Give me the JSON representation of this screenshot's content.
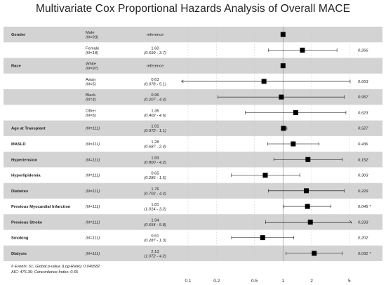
{
  "chart_data": {
    "type": "forest",
    "title": "Multivariate Cox Proportional Hazards Analysis of Overall MACE",
    "x_scale": "log",
    "x_ticks": [
      0.1,
      0.2,
      0.5,
      1,
      2,
      5
    ],
    "x_tick_labels": [
      "0.1",
      "0.2",
      "0.5",
      "1",
      "2",
      "5"
    ],
    "xlim": [
      0.1,
      5
    ],
    "rows": [
      {
        "variable": "Gender",
        "level": "Male",
        "n": "(N=93)",
        "hr_text": "reference",
        "ci_text": "",
        "p_text": "",
        "hr": 1,
        "lo": null,
        "hi": null,
        "shaded": true
      },
      {
        "variable": "",
        "level": "Female",
        "n": "(N=18)",
        "hr_text": "1.60",
        "ci_text": "(0.699 - 3.7)",
        "p_text": "0.266",
        "hr": 1.6,
        "lo": 0.699,
        "hi": 3.7,
        "shaded": false
      },
      {
        "variable": "Race",
        "level": "White",
        "n": "(N=97)",
        "hr_text": "reference",
        "ci_text": "",
        "p_text": "",
        "hr": 1,
        "lo": null,
        "hi": null,
        "shaded": true
      },
      {
        "variable": "",
        "level": "Asian",
        "n": "(N=5)",
        "hr_text": "0.63",
        "ci_text": "(0.078 - 5.1)",
        "p_text": "0.663",
        "hr": 0.63,
        "lo": 0.078,
        "hi": 5.1,
        "shaded": false
      },
      {
        "variable": "",
        "level": "Black",
        "n": "(N=4)",
        "hr_text": "0.96",
        "ci_text": "(0.207 - 4.4)",
        "p_text": "0.957",
        "hr": 0.96,
        "lo": 0.207,
        "hi": 4.4,
        "shaded": true
      },
      {
        "variable": "",
        "level": "Other",
        "n": "(N=5)",
        "hr_text": "1.36",
        "ci_text": "(0.402 - 4.6)",
        "p_text": "0.623",
        "hr": 1.36,
        "lo": 0.402,
        "hi": 4.6,
        "shaded": false
      },
      {
        "variable": "Age at Transplant",
        "level": "",
        "n": "(N=111)",
        "hr_text": "1.01",
        "ci_text": "(0.972 - 1.1)",
        "p_text": "0.527",
        "hr": 1.01,
        "lo": 0.972,
        "hi": 1.1,
        "shaded": true
      },
      {
        "variable": "MASLD",
        "level": "",
        "n": "(N=111)",
        "hr_text": "1.28",
        "ci_text": "(0.687 - 2.4)",
        "p_text": "0.436",
        "hr": 1.28,
        "lo": 0.687,
        "hi": 2.4,
        "shaded": false
      },
      {
        "variable": "Hypertension",
        "level": "",
        "n": "(N=111)",
        "hr_text": "1.83",
        "ci_text": "(0.800 - 4.2)",
        "p_text": "0.152",
        "hr": 1.83,
        "lo": 0.8,
        "hi": 4.2,
        "shaded": true
      },
      {
        "variable": "Hyperlipidemia",
        "level": "",
        "n": "(N=111)",
        "hr_text": "0.65",
        "ci_text": "(0.286 - 1.5)",
        "p_text": "0.303",
        "hr": 0.65,
        "lo": 0.286,
        "hi": 1.5,
        "shaded": false
      },
      {
        "variable": "Diabetes",
        "level": "",
        "n": "(N=111)",
        "hr_text": "1.76",
        "ci_text": "(0.702 - 4.4)",
        "p_text": "0.229",
        "hr": 1.76,
        "lo": 0.702,
        "hi": 4.4,
        "shaded": true
      },
      {
        "variable": "Previous Myocardial Infarction",
        "level": "",
        "n": "(N=111)",
        "hr_text": "1.81",
        "ci_text": "(1.014 - 3.2)",
        "p_text": "0.045 *",
        "hr": 1.81,
        "lo": 1.014,
        "hi": 3.2,
        "shaded": false
      },
      {
        "variable": "Previous Stroke",
        "level": "",
        "n": "(N=111)",
        "hr_text": "1.94",
        "ci_text": "(0.654 - 5.8)",
        "p_text": "0.233",
        "hr": 1.94,
        "lo": 0.654,
        "hi": 5.8,
        "shaded": true
      },
      {
        "variable": "Smoking",
        "level": "",
        "n": "(N=111)",
        "hr_text": "0.61",
        "ci_text": "(0.287 - 1.3)",
        "p_text": "0.202",
        "hr": 0.61,
        "lo": 0.287,
        "hi": 1.3,
        "shaded": false
      },
      {
        "variable": "Dialysis",
        "level": "",
        "n": "(N=111)",
        "hr_text": "2.13",
        "ci_text": "(1.072 - 4.2)",
        "p_text": "0.031 *",
        "hr": 2.13,
        "lo": 1.072,
        "hi": 4.2,
        "shaded": true
      }
    ],
    "footnote_line1": "# Events: 61; Global p-value (Log-Rank): 0.049582",
    "footnote_line2": "AIC: 475.36; Concordance Index: 0.65",
    "colors": {
      "shade": "#d3d3d3",
      "marker": "#000000",
      "grid": "#c8c8c8"
    }
  }
}
